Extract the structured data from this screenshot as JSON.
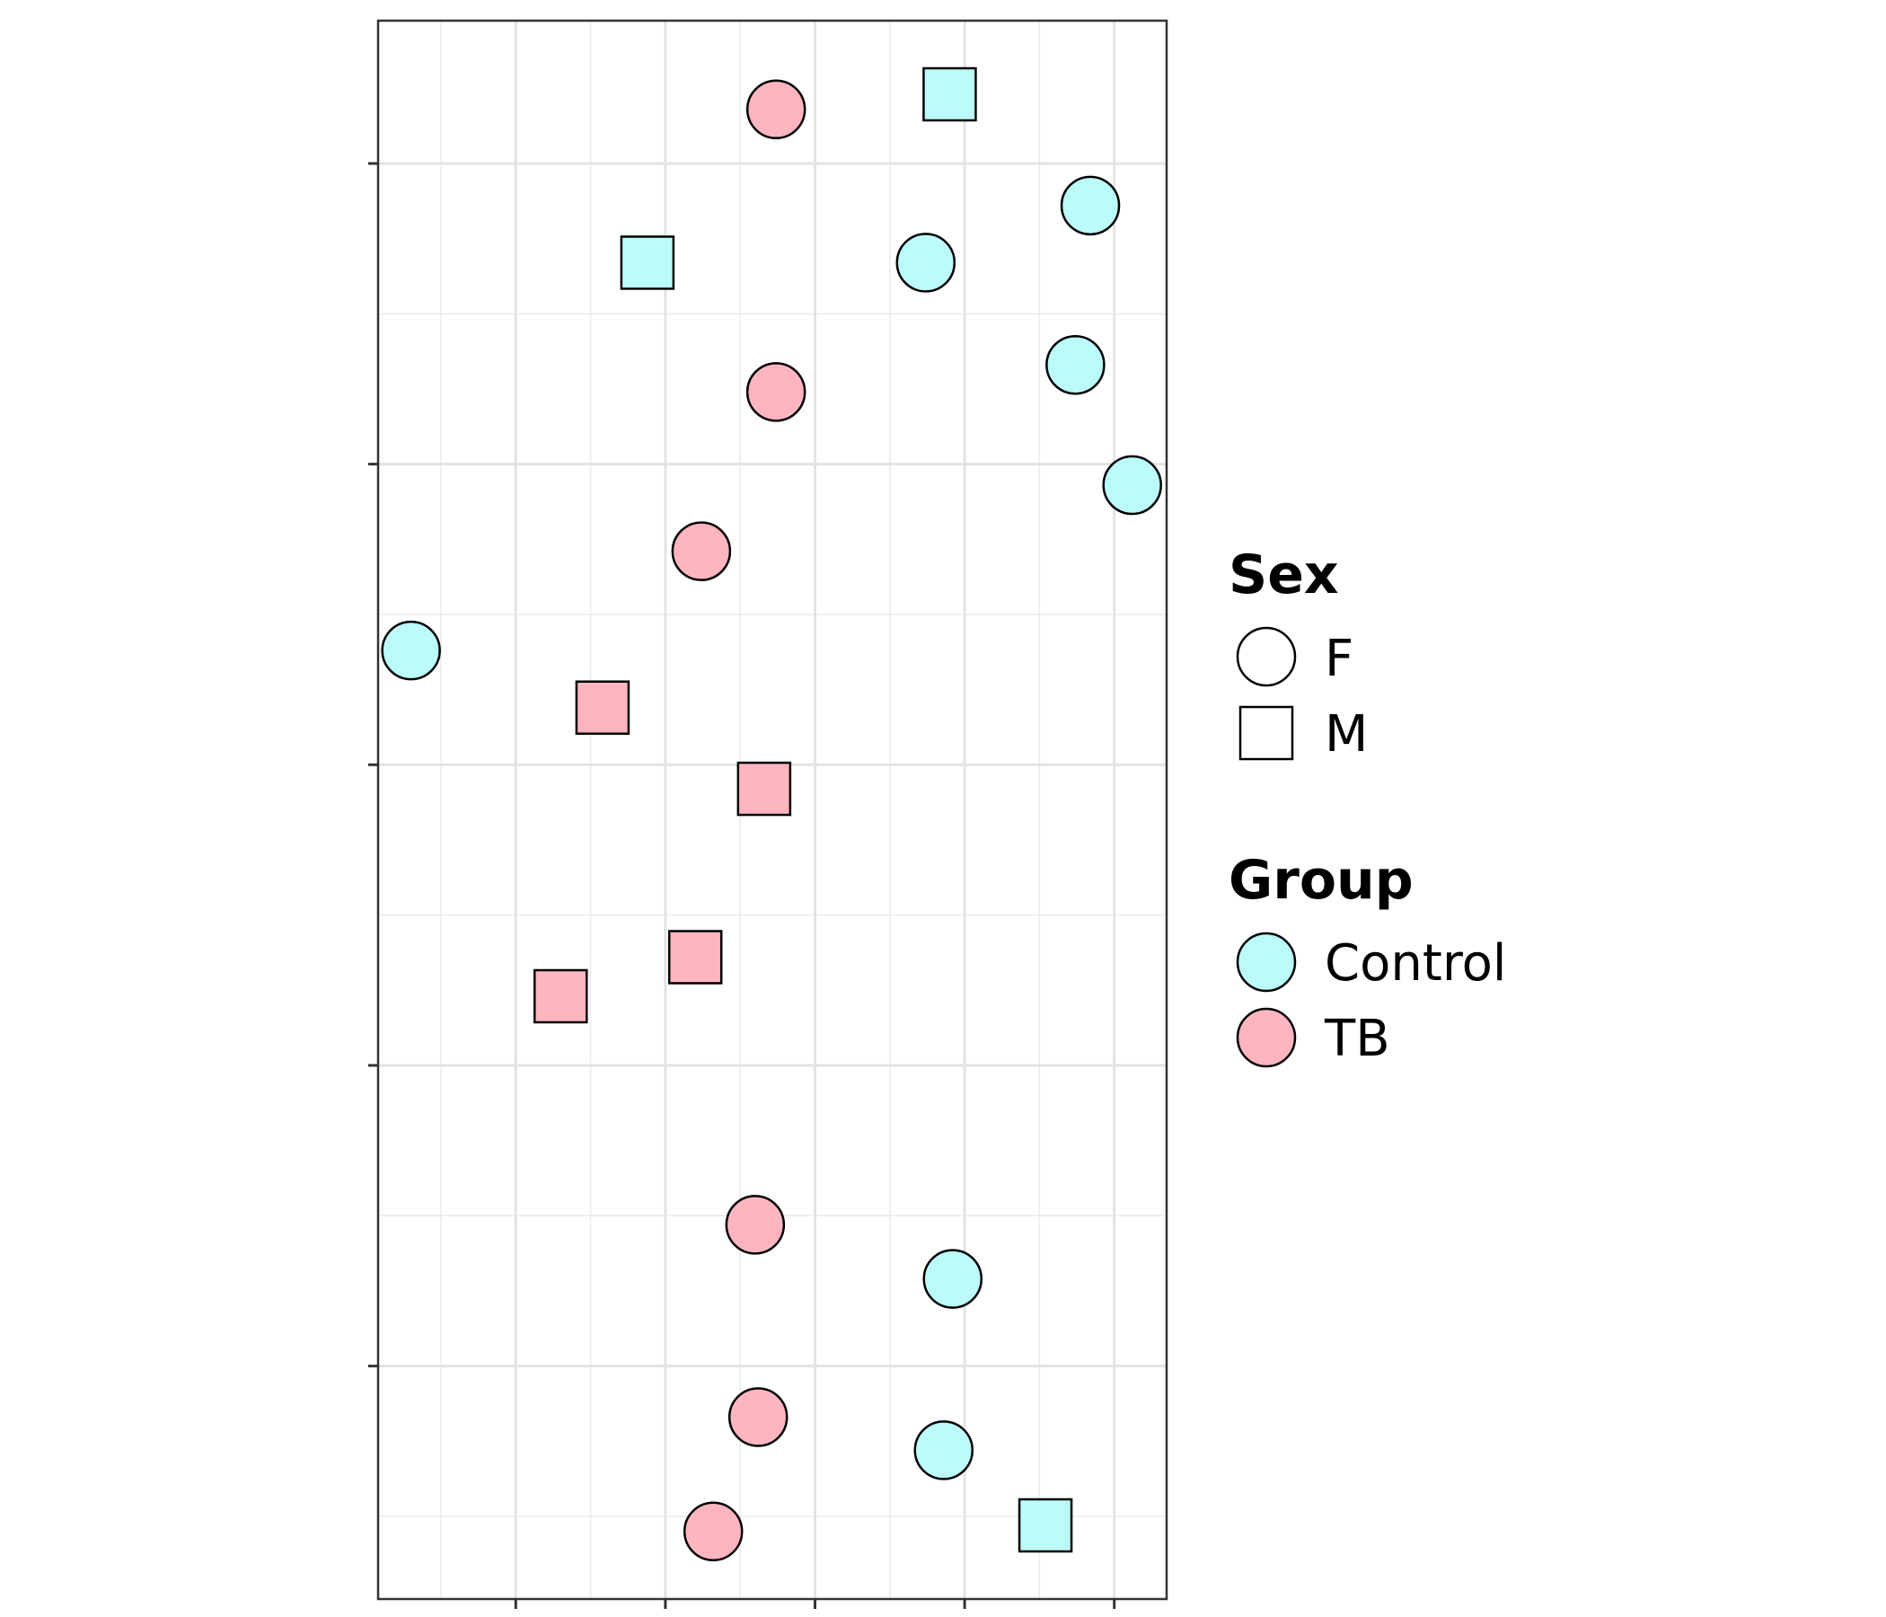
{
  "chart_data": {
    "type": "scatter",
    "title": "",
    "xlabel": "",
    "ylabel": "",
    "xlim": [
      -0.46,
      2.175
    ],
    "ylim": [
      -0.775,
      4.475
    ],
    "x_major_ticks": [
      0,
      0.5,
      1,
      1.5,
      2
    ],
    "y_major_ticks": [
      0,
      1,
      2,
      3,
      4
    ],
    "x_minor_ticks": [
      -0.25,
      0.25,
      0.75,
      1.25,
      1.75
    ],
    "y_minor_ticks": [
      -0.5,
      0.5,
      1.5,
      2.5,
      3.5
    ],
    "tick_labels_visible": false,
    "grid": true,
    "legend_position": "right",
    "series": [
      {
        "group": "Control",
        "color": "#bbfcfb",
        "points": [
          {
            "x": 1.45,
            "y": 4.23,
            "sex": "M"
          },
          {
            "x": 1.92,
            "y": 3.86,
            "sex": "F"
          },
          {
            "x": 1.37,
            "y": 3.67,
            "sex": "F"
          },
          {
            "x": 0.44,
            "y": 3.67,
            "sex": "M"
          },
          {
            "x": 1.87,
            "y": 3.33,
            "sex": "F"
          },
          {
            "x": 2.06,
            "y": 2.93,
            "sex": "F"
          },
          {
            "x": -0.35,
            "y": 2.38,
            "sex": "F"
          },
          {
            "x": 1.46,
            "y": 0.29,
            "sex": "F"
          },
          {
            "x": 1.43,
            "y": -0.28,
            "sex": "F"
          },
          {
            "x": 1.77,
            "y": -0.53,
            "sex": "M"
          }
        ]
      },
      {
        "group": "TB",
        "color": "#ffb5c0",
        "points": [
          {
            "x": 0.87,
            "y": 4.18,
            "sex": "F"
          },
          {
            "x": 0.87,
            "y": 3.24,
            "sex": "F"
          },
          {
            "x": 0.62,
            "y": 2.71,
            "sex": "F"
          },
          {
            "x": 0.29,
            "y": 2.19,
            "sex": "M"
          },
          {
            "x": 0.83,
            "y": 1.92,
            "sex": "M"
          },
          {
            "x": 0.6,
            "y": 1.36,
            "sex": "M"
          },
          {
            "x": 0.15,
            "y": 1.23,
            "sex": "M"
          },
          {
            "x": 0.8,
            "y": 0.47,
            "sex": "F"
          },
          {
            "x": 0.81,
            "y": -0.17,
            "sex": "F"
          },
          {
            "x": 0.66,
            "y": -0.55,
            "sex": "F"
          }
        ]
      }
    ]
  },
  "legend": {
    "sex": {
      "title": "Sex",
      "items": [
        {
          "label": "F",
          "shape": "circle"
        },
        {
          "label": "M",
          "shape": "square"
        }
      ]
    },
    "group": {
      "title": "Group",
      "items": [
        {
          "label": "Control",
          "color": "#bbfcfb"
        },
        {
          "label": "TB",
          "color": "#ffb5c0"
        }
      ]
    }
  }
}
